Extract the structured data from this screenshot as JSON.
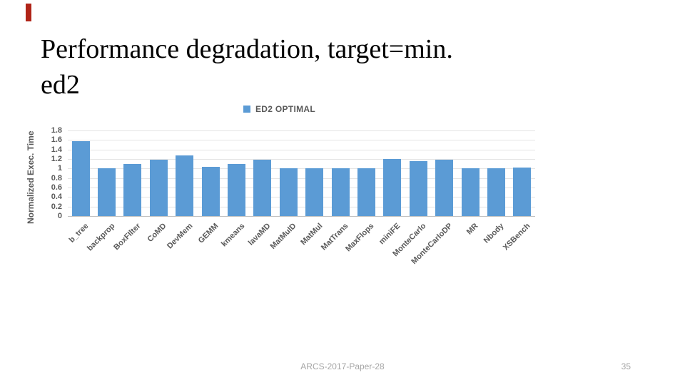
{
  "slide": {
    "title_line1": "Performance degradation, target=min.",
    "title_line2": "ed2"
  },
  "footer": {
    "text": "ARCS-2017-Paper-28",
    "page": "35"
  },
  "colors": {
    "bar": "#5b9bd5",
    "accent_bar": "#b02418",
    "axis_text": "#595959",
    "gridline": "#e4e4e4",
    "footer_text": "#a6a6a6"
  },
  "chart_data": {
    "type": "bar",
    "title": "",
    "legend": "ED2 OPTIMAL",
    "legend_position": "top-center",
    "ylabel": "Normalized Exec. Time",
    "xlabel": "",
    "ylim": [
      0,
      1.8
    ],
    "ytick_step": 0.2,
    "yticks": [
      "0",
      "0.2",
      "0.4",
      "0.6",
      "0.8",
      "1",
      "1.2",
      "1.4",
      "1.6",
      "1.8"
    ],
    "grid": true,
    "categories": [
      "b_tree",
      "backprop",
      "BoxFIlter",
      "CoMD",
      "DevMem",
      "GEMM",
      "kmeans",
      "lavaMD",
      "MatMulD",
      "MatMul",
      "MatTrans",
      "MaxFlops",
      "miniFE",
      "MonteCarlo",
      "MonteCarloDP",
      "MR",
      "Nbody",
      "XSBench"
    ],
    "values": [
      1.57,
      1.0,
      1.1,
      1.19,
      1.27,
      1.04,
      1.09,
      1.18,
      1.01,
      1.01,
      1.0,
      1.0,
      1.2,
      1.16,
      1.18,
      1.01,
      1.01,
      1.02
    ]
  }
}
